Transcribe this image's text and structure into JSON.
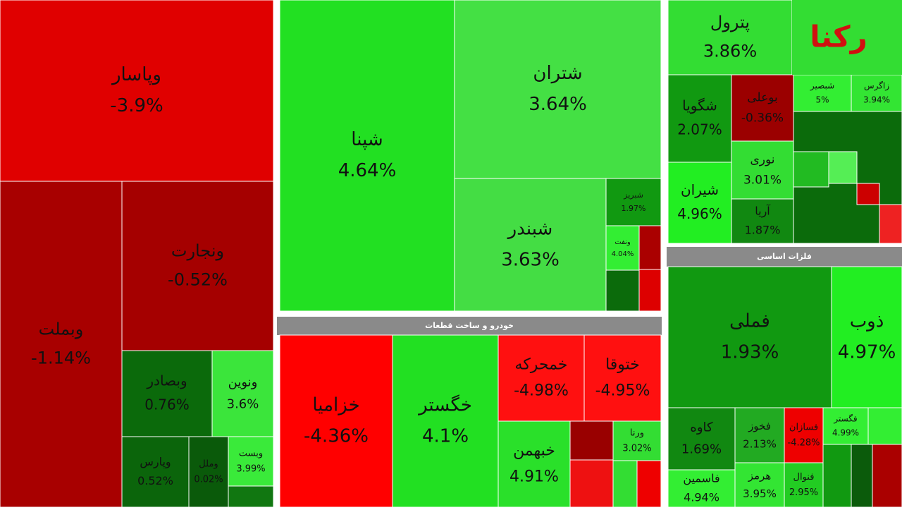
{
  "logo": "رکنا",
  "sectors": [
    {
      "tiles": [
        {
          "name": "وپاسار",
          "change": "-3.9%",
          "color": "#e00000"
        },
        {
          "name": "ونجارت",
          "change": "-0.52%",
          "color": "#a50000"
        },
        {
          "name": "وبملت",
          "change": "-1.14%",
          "color": "#a80000"
        },
        {
          "name": "وبصادر",
          "change": "0.76%",
          "color": "#0b6a0b"
        },
        {
          "name": "ونوین",
          "change": "3.6%",
          "color": "#3be53b"
        },
        {
          "name": "وپارس",
          "change": "0.52%",
          "color": "#0b650b"
        },
        {
          "name": "وملل",
          "change": "0.02%",
          "color": "#0a5a0a"
        },
        {
          "name": "وبست",
          "change": "3.99%",
          "color": "#3aea3a"
        }
      ]
    },
    {
      "tiles": [
        {
          "name": "شپنا",
          "change": "4.64%",
          "color": "#22e022"
        },
        {
          "name": "شتران",
          "change": "3.64%",
          "color": "#44e044"
        },
        {
          "name": "شبندر",
          "change": "3.63%",
          "color": "#44dd44"
        },
        {
          "name": "شبریز",
          "change": "1.97%",
          "color": "#119911"
        },
        {
          "name": "ونفت",
          "change": "4.04%",
          "color": "#33ee33"
        }
      ]
    },
    {
      "title": "خودرو و ساخت قطعات",
      "tiles": [
        {
          "name": "خزامیا",
          "change": "-4.36%",
          "color": "#ff0000"
        },
        {
          "name": "خگستر",
          "change": "4.1%",
          "color": "#22e022"
        },
        {
          "name": "خمحرکه",
          "change": "-4.98%",
          "color": "#ff1010"
        },
        {
          "name": "ختوقا",
          "change": "-4.95%",
          "color": "#ff1010"
        },
        {
          "name": "خبهمن",
          "change": "4.91%",
          "color": "#2ae02a"
        },
        {
          "name": "ورنا",
          "change": "3.02%",
          "color": "#33dd33"
        }
      ]
    },
    {
      "tiles": [
        {
          "name": "پترول",
          "change": "3.86%",
          "color": "#33dd33"
        },
        {
          "name": "شگویا",
          "change": "2.07%",
          "color": "#119911"
        },
        {
          "name": "بوعلی",
          "change": "-0.36%",
          "color": "#9b0000"
        },
        {
          "name": "نوری",
          "change": "3.01%",
          "color": "#33dd33"
        },
        {
          "name": "آریا",
          "change": "1.87%",
          "color": "#118811"
        },
        {
          "name": "شیران",
          "change": "4.96%",
          "color": "#22ee22"
        },
        {
          "name": "شبصیر",
          "change": "5%",
          "color": "#33ee33"
        },
        {
          "name": "زاگرس",
          "change": "3.94%",
          "color": "#33e533"
        }
      ]
    },
    {
      "title": "فلزات اساسی",
      "tiles": [
        {
          "name": "فملی",
          "change": "1.93%",
          "color": "#119911"
        },
        {
          "name": "ذوب",
          "change": "4.97%",
          "color": "#22ee22"
        },
        {
          "name": "کاوه",
          "change": "1.69%",
          "color": "#118811"
        },
        {
          "name": "فخوز",
          "change": "2.13%",
          "color": "#22aa22"
        },
        {
          "name": "فسازان",
          "change": "-4.28%",
          "color": "#ee0000"
        },
        {
          "name": "فگستر",
          "change": "4.99%",
          "color": "#33ee33"
        },
        {
          "name": "فاسمین",
          "change": "4.94%",
          "color": "#33ee33"
        },
        {
          "name": "هرمز",
          "change": "3.95%",
          "color": "#33e533"
        },
        {
          "name": "فنوال",
          "change": "2.95%",
          "color": "#22cc22"
        }
      ]
    }
  ]
}
